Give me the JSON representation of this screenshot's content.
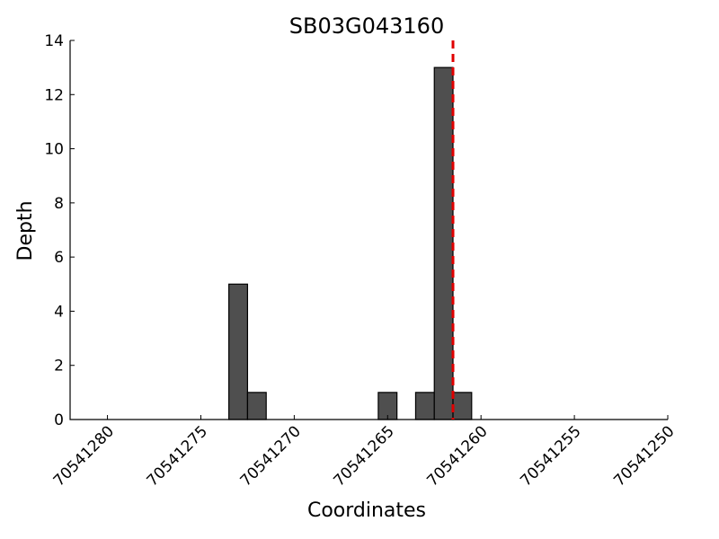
{
  "chart_data": {
    "type": "bar",
    "title": "SB03G043160",
    "xlabel": "Coordinates",
    "ylabel": "Depth",
    "x_reversed": true,
    "xlim": [
      70541282,
      70541250
    ],
    "ylim": [
      0,
      14
    ],
    "x_ticks": [
      70541280,
      70541275,
      70541270,
      70541265,
      70541260,
      70541255,
      70541250
    ],
    "y_ticks": [
      0,
      2,
      4,
      6,
      8,
      10,
      12,
      14
    ],
    "bars": [
      {
        "x": 70541273,
        "value": 5
      },
      {
        "x": 70541272,
        "value": 1
      },
      {
        "x": 70541265,
        "value": 1
      },
      {
        "x": 70541263,
        "value": 1
      },
      {
        "x": 70541262,
        "value": 13
      },
      {
        "x": 70541261,
        "value": 1
      }
    ],
    "marker": {
      "x": 70541261.5,
      "style": "dashed",
      "color": "#e00000"
    },
    "bar_color": "#4f4f4f",
    "grid": false,
    "legend": "none"
  }
}
